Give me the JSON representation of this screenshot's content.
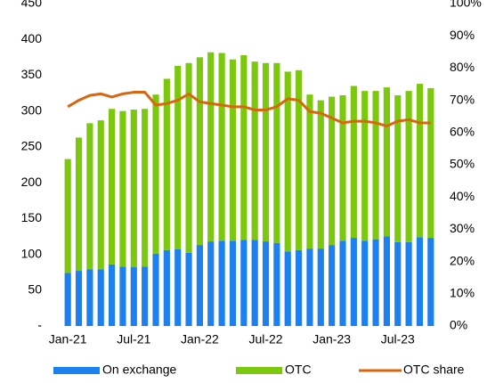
{
  "chart_data": {
    "type": "bar",
    "categories": [
      "Jan-21",
      null,
      null,
      null,
      null,
      null,
      "Jul-21",
      null,
      null,
      null,
      null,
      null,
      "Jan-22",
      null,
      null,
      null,
      null,
      null,
      "Jul-22",
      null,
      null,
      null,
      null,
      null,
      "Jan-23",
      null,
      null,
      null,
      null,
      null,
      "Jul-23",
      null,
      null,
      null
    ],
    "series": [
      {
        "name": "On exchange",
        "color": "#1c80ee",
        "type": "bar",
        "values": [
          74,
          77,
          79,
          79,
          86,
          83,
          82,
          83,
          101,
          106,
          107,
          102,
          113,
          118,
          119,
          119,
          120,
          120,
          118,
          116,
          104,
          106,
          108,
          108,
          113,
          119,
          123,
          119,
          121,
          125,
          117,
          117,
          124,
          123
        ]
      },
      {
        "name": "OTC",
        "color": "#7cc80f",
        "type": "bar",
        "values": [
          159,
          186,
          204,
          208,
          217,
          217,
          220,
          220,
          222,
          239,
          256,
          265,
          262,
          264,
          262,
          253,
          258,
          249,
          249,
          251,
          251,
          251,
          215,
          207,
          207,
          203,
          212,
          209,
          207,
          208,
          205,
          211,
          214,
          209
        ]
      },
      {
        "name": "OTC share",
        "color": "#d9650f",
        "type": "line",
        "axis": "y2",
        "values": [
          68,
          70,
          71.5,
          72,
          71,
          72,
          72.5,
          72.5,
          68.5,
          69,
          70,
          72,
          69.5,
          69,
          68.5,
          68,
          68,
          67,
          67,
          68,
          70.5,
          70,
          66.5,
          66,
          64.5,
          63,
          63.5,
          63.5,
          63,
          62,
          63.5,
          64,
          63,
          63
        ]
      }
    ],
    "stacked": true,
    "ylim": [
      0,
      450
    ],
    "yticks": [
      {
        "value": 0,
        "label": "-"
      },
      50,
      100,
      150,
      200,
      250,
      300,
      350,
      400,
      450
    ],
    "y2lim": [
      0,
      100
    ],
    "y2ticks": [
      {
        "value": 0,
        "label": "0%"
      },
      {
        "value": 10,
        "label": "10%"
      },
      {
        "value": 20,
        "label": "20%"
      },
      {
        "value": 30,
        "label": "30%"
      },
      {
        "value": 40,
        "label": "40%"
      },
      {
        "value": 50,
        "label": "50%"
      },
      {
        "value": 60,
        "label": "60%"
      },
      {
        "value": 70,
        "label": "70%"
      },
      {
        "value": 80,
        "label": "80%"
      },
      {
        "value": 90,
        "label": "90%"
      },
      {
        "value": 100,
        "label": "100%"
      }
    ],
    "legend": "bottom"
  }
}
